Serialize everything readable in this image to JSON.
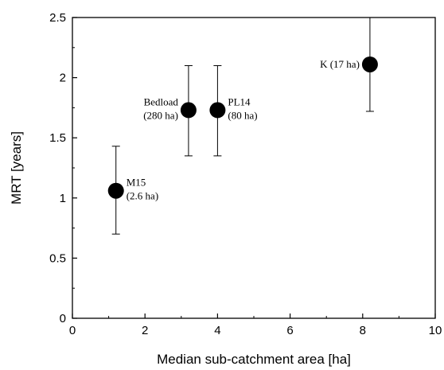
{
  "chart_data": {
    "type": "scatter",
    "xlabel": "Median sub-catchment area [ha]",
    "ylabel": "MRT [years]",
    "xlim": [
      0,
      10
    ],
    "ylim": [
      0,
      2.5
    ],
    "xticks": [
      "0",
      "2",
      "4",
      "6",
      "8",
      "10"
    ],
    "yticks": [
      "0",
      "0.5",
      "1",
      "1.5",
      "2",
      "2.5"
    ],
    "grid": false,
    "points": [
      {
        "x": 1.2,
        "y": 1.06,
        "yerr_low": 0.7,
        "yerr_high": 1.43,
        "label": [
          "M15",
          "(2.6 ha)"
        ],
        "label_side": "right"
      },
      {
        "x": 3.2,
        "y": 1.73,
        "yerr_low": 1.35,
        "yerr_high": 2.1,
        "label": [
          "Bedload",
          "(280 ha)"
        ],
        "label_side": "left"
      },
      {
        "x": 4.0,
        "y": 1.73,
        "yerr_low": 1.35,
        "yerr_high": 2.1,
        "label": [
          "PL14",
          "(80 ha)"
        ],
        "label_side": "right"
      },
      {
        "x": 8.2,
        "y": 2.11,
        "yerr_low": 1.72,
        "yerr_high": 2.5,
        "label": [
          "K (17 ha)"
        ],
        "label_side": "left"
      }
    ]
  }
}
